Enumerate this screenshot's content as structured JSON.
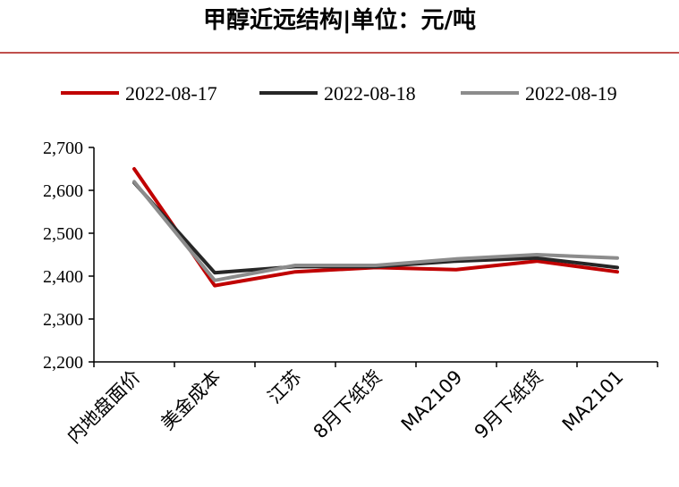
{
  "chart_data": {
    "type": "line",
    "title": "甲醇近远结构|单位：元/吨",
    "xlabel": "",
    "ylabel": "",
    "categories": [
      "内地盘面价",
      "美金成本",
      "江苏",
      "8月下纸货",
      "MA2109",
      "9月下纸货",
      "MA2101"
    ],
    "ylim": [
      2200,
      2700
    ],
    "yticks": [
      2200,
      2300,
      2400,
      2500,
      2600,
      2700
    ],
    "ytick_labels": [
      "2,200",
      "2,300",
      "2,400",
      "2,500",
      "2,600",
      "2,700"
    ],
    "grid": false,
    "legend_position": "top",
    "series": [
      {
        "name": "2022-08-17",
        "color": "#c00000",
        "values": [
          2650,
          2378,
          2410,
          2420,
          2415,
          2435,
          2410
        ]
      },
      {
        "name": "2022-08-18",
        "color": "#262626",
        "values": [
          2618,
          2408,
          2422,
          2422,
          2435,
          2442,
          2420
        ]
      },
      {
        "name": "2022-08-19",
        "color": "#8c8c8c",
        "values": [
          2620,
          2390,
          2425,
          2425,
          2440,
          2450,
          2442
        ]
      }
    ]
  }
}
